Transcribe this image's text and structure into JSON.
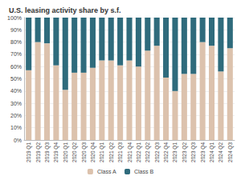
{
  "chart_data": {
    "type": "bar",
    "title": "U.S. leasing activity share by s.f.",
    "stacked": true,
    "grid": true,
    "legend": "bottom",
    "categories": [
      "2019 Q1",
      "2019 Q2",
      "2019 Q3",
      "2019 Q4",
      "2020 Q1",
      "2020 Q2",
      "2020 Q3",
      "2020 Q4",
      "2021 Q1",
      "2021 Q2",
      "2021 Q3",
      "2021 Q4",
      "2022 Q1",
      "2022 Q2",
      "2022 Q3",
      "2022 Q4",
      "2023 Q1",
      "2023 Q2",
      "2023 Q3",
      "2023 Q4",
      "2024 Q1",
      "2024 Q2",
      "2024 Q3"
    ],
    "series": [
      {
        "name": "Class A",
        "color": "#dcc2ad",
        "values": [
          57,
          80,
          79,
          61,
          41,
          55,
          55,
          59,
          65,
          65,
          61,
          65,
          60,
          73,
          77,
          51,
          40,
          54,
          54,
          80,
          77,
          56,
          75
        ]
      },
      {
        "name": "Class B",
        "color": "#2f6b7c",
        "values": [
          43,
          20,
          21,
          39,
          59,
          45,
          45,
          41,
          35,
          35,
          39,
          35,
          40,
          27,
          23,
          49,
          60,
          46,
          46,
          20,
          23,
          44,
          25
        ]
      }
    ],
    "ylim": [
      0,
      100
    ],
    "yticks": [
      {
        "value": 0,
        "label": "0%"
      },
      {
        "value": 10,
        "label": "10%"
      },
      {
        "value": 20,
        "label": "20%"
      },
      {
        "value": 30,
        "label": "30%"
      },
      {
        "value": 40,
        "label": "40%"
      },
      {
        "value": 50,
        "label": "50%"
      },
      {
        "value": 60,
        "label": "60%"
      },
      {
        "value": 70,
        "label": "70%"
      },
      {
        "value": 80,
        "label": "80%"
      },
      {
        "value": 90,
        "label": "90%"
      },
      {
        "value": 100,
        "label": "100%"
      }
    ]
  }
}
